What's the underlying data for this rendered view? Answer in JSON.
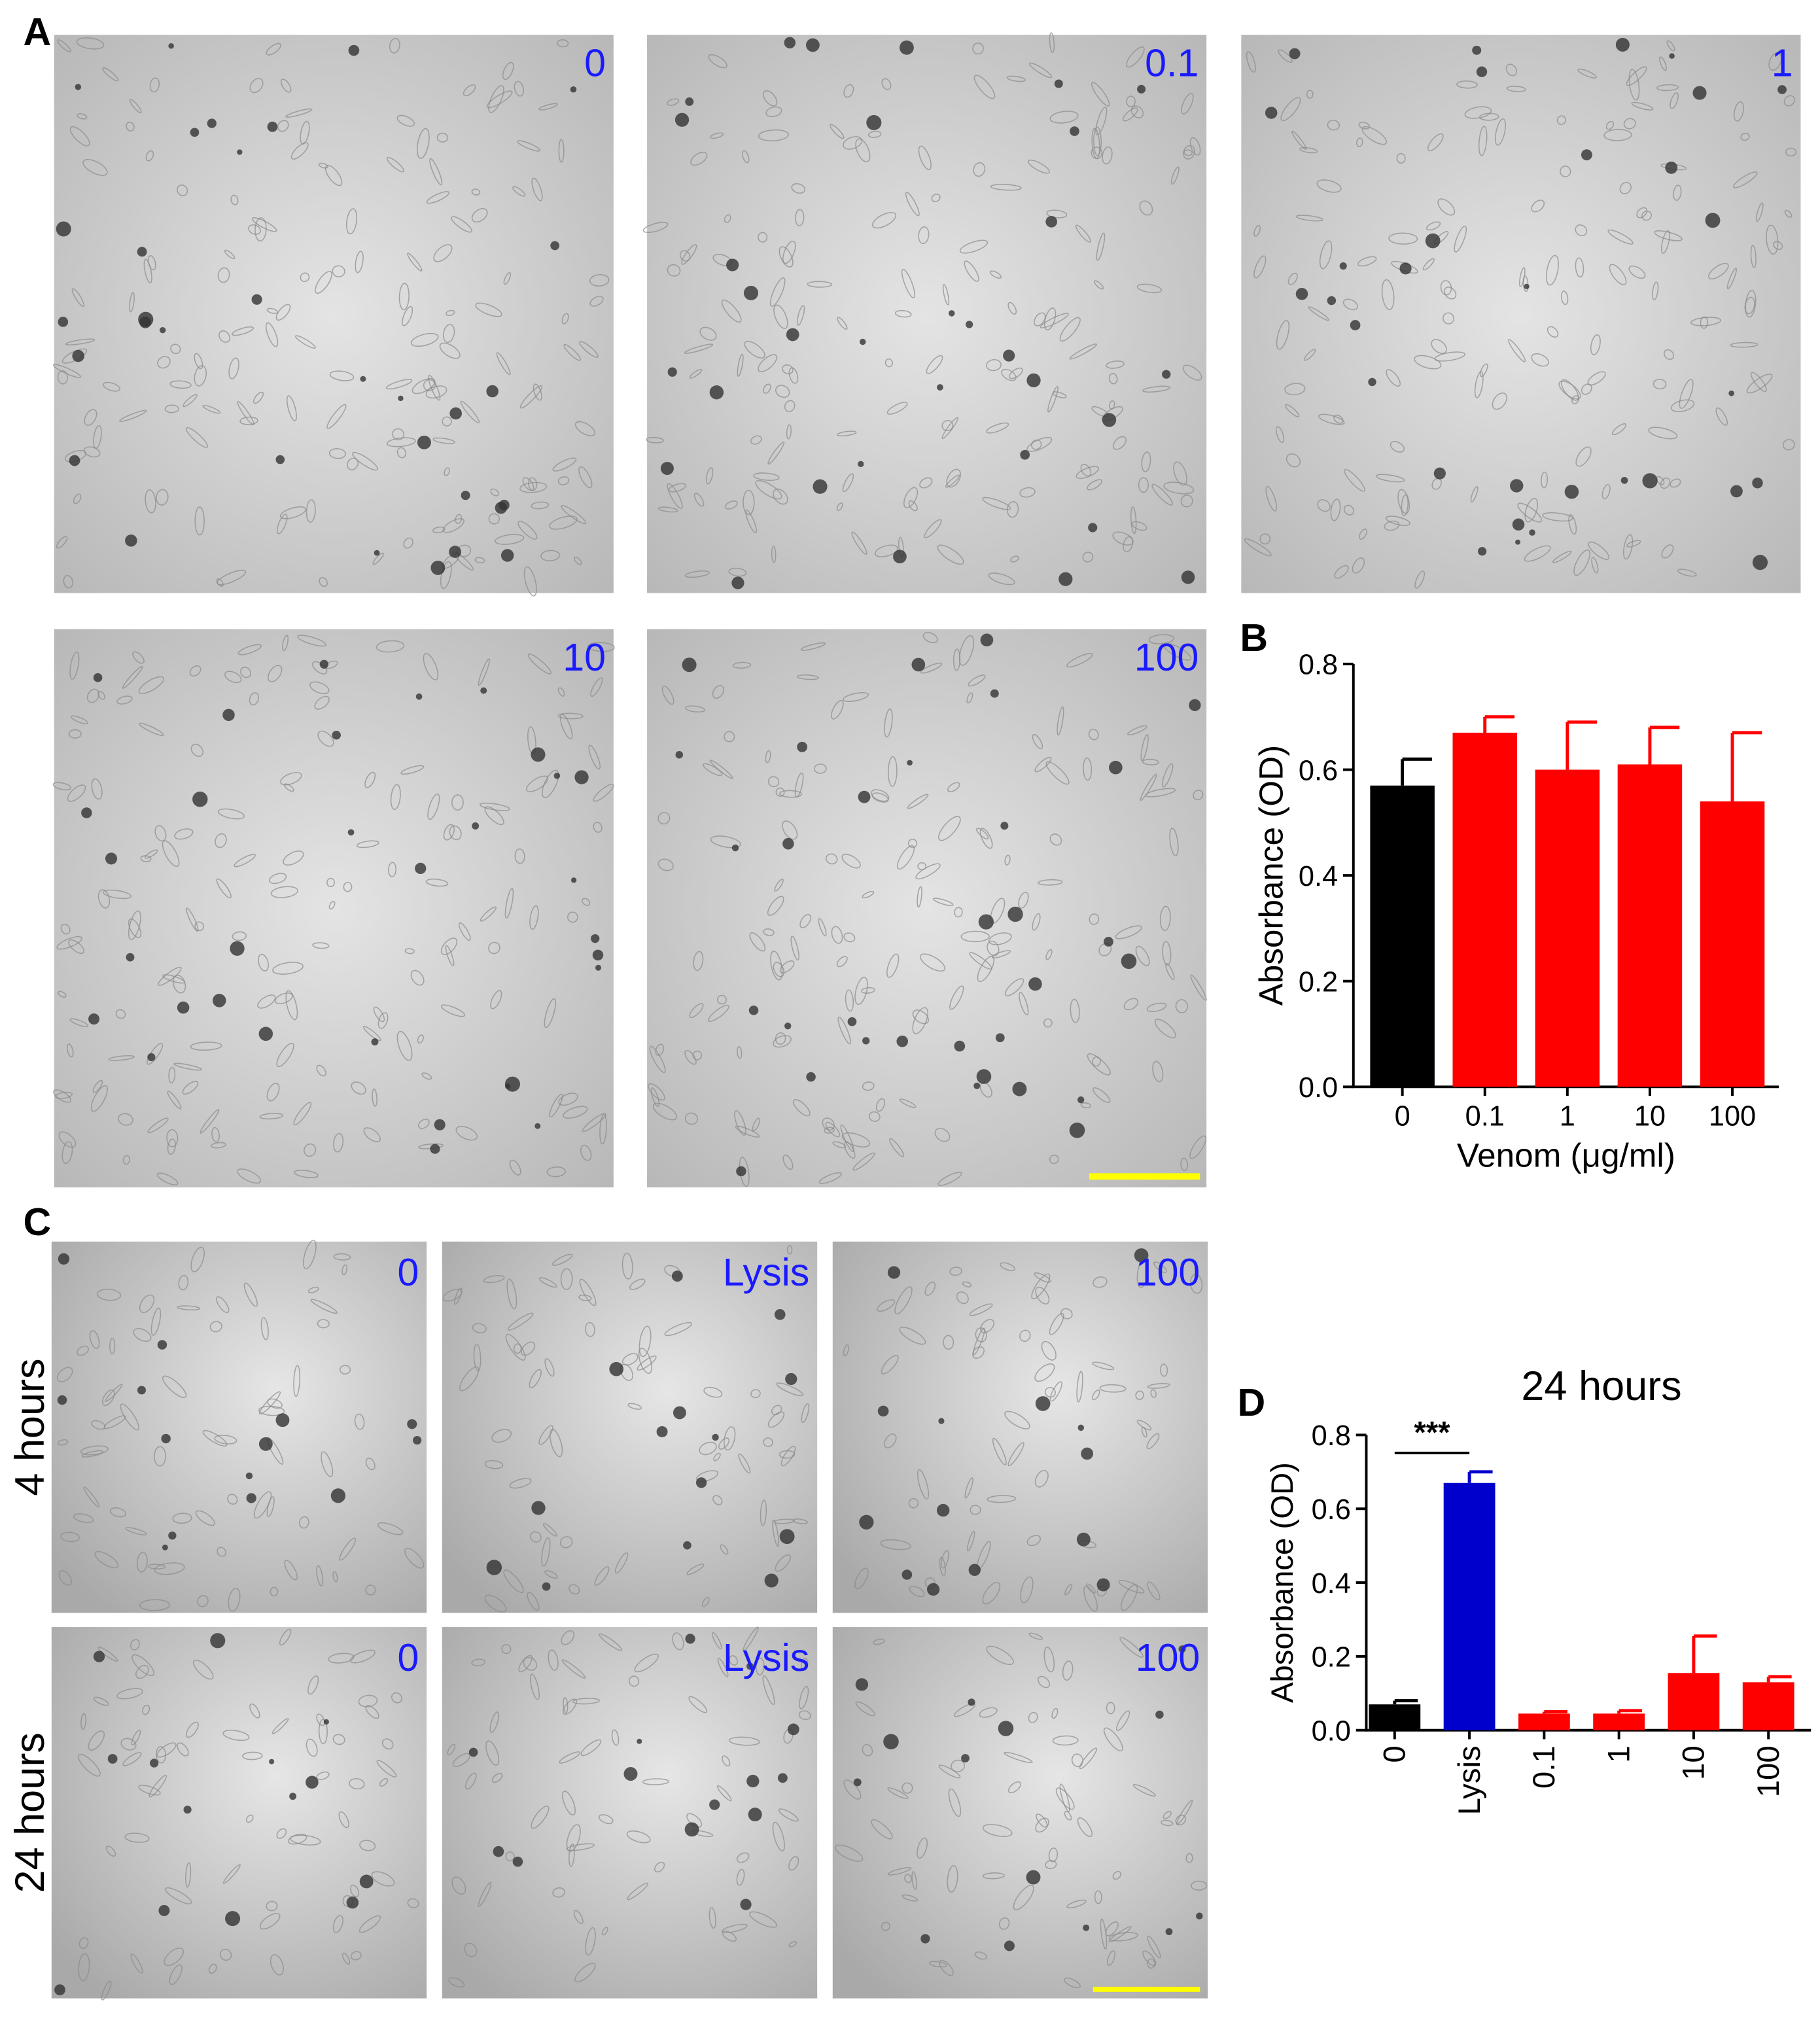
{
  "panel_letters": [
    "A",
    "B",
    "C",
    "D"
  ],
  "panel_a": {
    "image_labels": [
      "0",
      "0.1",
      "1",
      "10",
      "100"
    ]
  },
  "panel_c": {
    "row_labels": [
      "4 hours",
      "24 hours"
    ],
    "image_labels": [
      [
        "0",
        "Lysis",
        "100"
      ],
      [
        "0",
        "Lysis",
        "100"
      ]
    ]
  },
  "chart_data": [
    {
      "type": "bar",
      "ylabel": "Absorbance (OD)",
      "xlabel": "Venom (μg/ml)",
      "categories": [
        "0",
        "0.1",
        "1",
        "10",
        "100"
      ],
      "values": [
        0.57,
        0.67,
        0.6,
        0.61,
        0.54
      ],
      "errors": [
        0.05,
        0.03,
        0.09,
        0.07,
        0.13
      ],
      "colors": [
        "#000000",
        "#ff0000",
        "#ff0000",
        "#ff0000",
        "#ff0000"
      ],
      "ylim": [
        0,
        0.8
      ],
      "yticks": [
        {
          "value": 0,
          "label": "0.0"
        },
        0.2,
        0.4,
        0.6,
        0.8
      ]
    },
    {
      "type": "bar",
      "title": "24 hours",
      "ylabel": "Absorbance (OD)",
      "annotation": "***",
      "categories": [
        "0",
        "Lysis",
        "0.1",
        "1",
        "10",
        "100"
      ],
      "values": [
        0.07,
        0.67,
        0.045,
        0.045,
        0.155,
        0.13
      ],
      "errors": [
        0.01,
        0.03,
        0.005,
        0.008,
        0.1,
        0.015
      ],
      "colors": [
        "#000000",
        "#0000cc",
        "#ff0000",
        "#ff0000",
        "#ff0000",
        "#ff0000"
      ],
      "rotate_x_labels": true,
      "ylim": [
        0,
        0.8
      ],
      "yticks": [
        {
          "value": 0,
          "label": "0.0"
        },
        0.2,
        0.4,
        0.6,
        0.8
      ]
    }
  ]
}
